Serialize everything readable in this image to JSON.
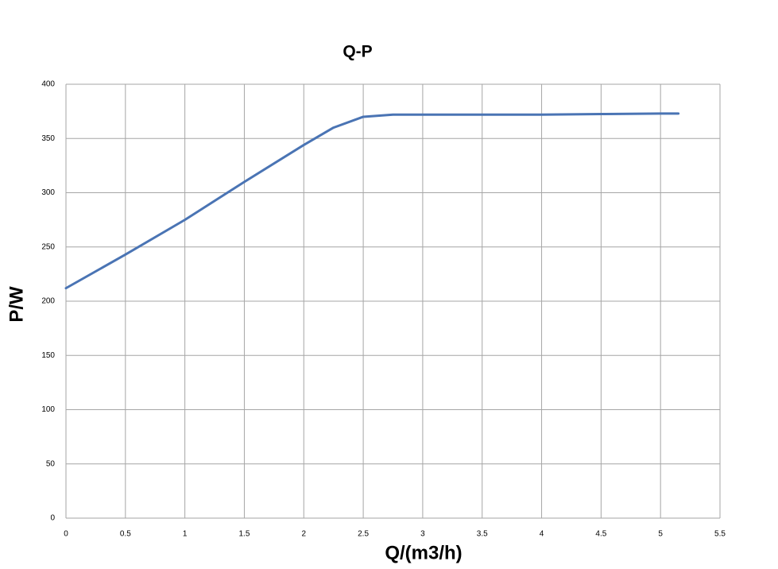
{
  "chart_data": {
    "type": "line",
    "title": "Q-P",
    "x_label": "Q/(m3/h)",
    "y_label": "P/W",
    "x": [
      0,
      0.5,
      1,
      1.5,
      2,
      2.25,
      2.5,
      2.75,
      3,
      3.5,
      4,
      4.5,
      5,
      5.15
    ],
    "series": [
      {
        "color": "#4a74b4",
        "values": [
          212,
          243,
          275,
          310,
          344,
          360,
          370,
          372,
          372,
          372,
          372,
          372.5,
          373,
          373
        ]
      }
    ],
    "xlim": [
      0,
      5.5
    ],
    "xticks": [
      0,
      0.5,
      1,
      1.5,
      2,
      2.5,
      3,
      3.5,
      4,
      4.5,
      5,
      5.5
    ],
    "ylim": [
      0,
      400
    ],
    "yticks": [
      0,
      50,
      100,
      150,
      200,
      250,
      300,
      350,
      400
    ],
    "grid": true
  }
}
